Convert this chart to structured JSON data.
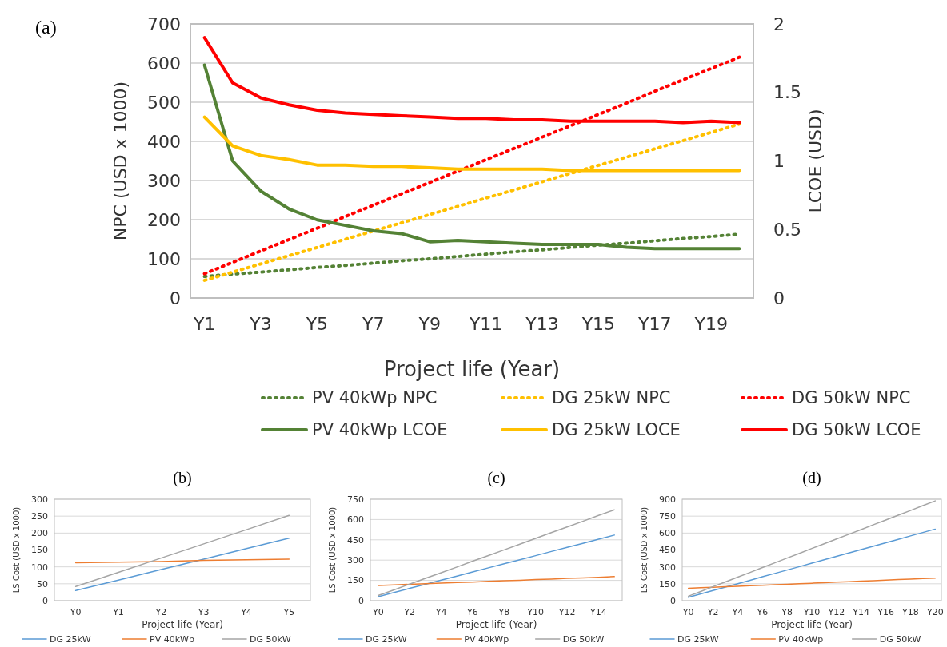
{
  "chart_data": [
    {
      "type": "line",
      "title": "(a)",
      "xlabel": "Project life (Year)",
      "ylabel": "NPC (USD x 1000)",
      "y2label": "LCOE (USD)",
      "categories": [
        "Y1",
        null,
        "Y3",
        null,
        "Y5",
        null,
        "Y7",
        null,
        "Y9",
        null,
        "Y11",
        null,
        "Y13",
        null,
        "Y15",
        null,
        "Y17",
        null,
        "Y19",
        null
      ],
      "ylim": [
        0,
        700
      ],
      "yticks": [
        0,
        100,
        200,
        300,
        400,
        500,
        600,
        700
      ],
      "y2lim": [
        0,
        2
      ],
      "y2ticks": [
        0,
        0.5,
        1,
        1.5,
        2
      ],
      "grid": "y",
      "legend": "bottom",
      "series": [
        {
          "name": "PV 40kWp NPC",
          "color": "#548235",
          "line_style": "dotted",
          "values": [
            55,
            61,
            66,
            72,
            78,
            83,
            89,
            95,
            100,
            106,
            112,
            118,
            123,
            129,
            135,
            140,
            146,
            152,
            157,
            163
          ]
        },
        {
          "name": "DG 25kW NPC",
          "color": "#ffc000",
          "line_style": "dotted",
          "values": [
            45,
            66,
            87,
            108,
            129,
            150,
            171,
            192,
            213,
            234,
            255,
            276,
            297,
            318,
            339,
            360,
            381,
            402,
            423,
            444
          ]
        },
        {
          "name": "DG 50kW NPC",
          "color": "#ff0000",
          "line_style": "dotted",
          "values": [
            62,
            91,
            120,
            149,
            178,
            208,
            237,
            266,
            295,
            324,
            353,
            382,
            411,
            440,
            469,
            498,
            528,
            557,
            586,
            615
          ]
        },
        {
          "name": "PV 40kWp LCOE",
          "color": "#548235",
          "line_style": "solid",
          "axis": "y2",
          "values": [
            1.7,
            1.0,
            0.78,
            0.65,
            0.57,
            0.53,
            0.49,
            0.47,
            0.41,
            0.42,
            0.41,
            0.4,
            0.39,
            0.39,
            0.39,
            0.37,
            0.36,
            0.36,
            0.36,
            0.36
          ]
        },
        {
          "name": "DG 25kW LOCE",
          "color": "#ffc000",
          "line_style": "solid",
          "axis": "y2",
          "values": [
            1.32,
            1.11,
            1.04,
            1.01,
            0.97,
            0.97,
            0.96,
            0.96,
            0.95,
            0.94,
            0.94,
            0.94,
            0.94,
            0.93,
            0.93,
            0.93,
            0.93,
            0.93,
            0.93,
            0.93
          ]
        },
        {
          "name": "DG 50kW LCOE",
          "color": "#ff0000",
          "line_style": "solid",
          "axis": "y2",
          "values": [
            1.9,
            1.57,
            1.46,
            1.41,
            1.37,
            1.35,
            1.34,
            1.33,
            1.32,
            1.31,
            1.31,
            1.3,
            1.3,
            1.29,
            1.29,
            1.29,
            1.29,
            1.28,
            1.29,
            1.28
          ]
        }
      ]
    },
    {
      "type": "line",
      "title": "(b)",
      "xlabel": "Project life (Year)",
      "ylabel": "LS Cost (USD x 1000)",
      "categories": [
        "Y0",
        "Y1",
        "Y2",
        "Y3",
        "Y4",
        "Y5"
      ],
      "ylim": [
        0,
        300
      ],
      "yticks": [
        0,
        50,
        100,
        150,
        200,
        250,
        300
      ],
      "grid": "y",
      "legend": "bottom",
      "series": [
        {
          "name": "DG 25kW",
          "color": "#5b9bd5",
          "values": [
            30,
            61,
            92,
            123,
            154,
            185
          ]
        },
        {
          "name": "PV 40kWp",
          "color": "#ed7d31",
          "values": [
            112,
            114,
            116,
            119,
            121,
            123
          ]
        },
        {
          "name": "DG 50kW",
          "color": "#a5a5a5",
          "values": [
            42,
            84,
            126,
            168,
            210,
            252
          ]
        }
      ]
    },
    {
      "type": "line",
      "title": "(c)",
      "xlabel": "Project life (Year)",
      "ylabel": "LS Cost (USD x 1000)",
      "categories": [
        "Y0",
        null,
        "Y2",
        null,
        "Y4",
        null,
        "Y6",
        null,
        "Y8",
        null,
        "Y10",
        null,
        "Y12",
        null,
        "Y14",
        null
      ],
      "ylim": [
        0,
        750
      ],
      "yticks": [
        0,
        150,
        300,
        450,
        600,
        750
      ],
      "grid": "y",
      "legend": "bottom",
      "series": [
        {
          "name": "DG 25kW",
          "color": "#5b9bd5",
          "values": [
            30,
            60,
            91,
            121,
            152,
            182,
            212,
            243,
            273,
            303,
            333,
            364,
            394,
            424,
            455,
            485
          ]
        },
        {
          "name": "PV 40kWp",
          "color": "#ed7d31",
          "values": [
            112,
            116,
            121,
            125,
            130,
            134,
            138,
            143,
            147,
            151,
            156,
            160,
            165,
            169,
            173,
            178
          ]
        },
        {
          "name": "DG 50kW",
          "color": "#a5a5a5",
          "values": [
            38,
            80,
            123,
            165,
            207,
            249,
            292,
            334,
            376,
            418,
            461,
            503,
            545,
            587,
            630,
            672
          ]
        }
      ]
    },
    {
      "type": "line",
      "title": "(d)",
      "xlabel": "Project life (Year)",
      "ylabel": "LS Cost (USD x 1000)",
      "categories": [
        "Y0",
        null,
        "Y2",
        null,
        "Y4",
        null,
        "Y6",
        null,
        "Y8",
        null,
        "Y10",
        null,
        "Y12",
        null,
        "Y14",
        null,
        "Y16",
        null,
        "Y18",
        null,
        "Y20"
      ],
      "ylim": [
        0,
        900
      ],
      "yticks": [
        0,
        150,
        300,
        450,
        600,
        750,
        900
      ],
      "grid": "y",
      "legend": "bottom",
      "series": [
        {
          "name": "DG 25kW",
          "color": "#5b9bd5",
          "values": [
            30,
            60,
            91,
            121,
            151,
            181,
            212,
            242,
            272,
            302,
            333,
            363,
            393,
            423,
            454,
            484,
            514,
            544,
            575,
            605,
            635
          ]
        },
        {
          "name": "PV 40kWp",
          "color": "#ed7d31",
          "values": [
            110,
            115,
            119,
            124,
            128,
            133,
            137,
            142,
            146,
            151,
            155,
            160,
            164,
            169,
            173,
            178,
            182,
            187,
            191,
            196,
            200
          ]
        },
        {
          "name": "DG 50kW",
          "color": "#a5a5a5",
          "values": [
            40,
            82,
            125,
            167,
            209,
            251,
            294,
            336,
            378,
            420,
            463,
            505,
            547,
            589,
            631,
            674,
            716,
            758,
            800,
            843,
            885
          ]
        }
      ]
    }
  ]
}
